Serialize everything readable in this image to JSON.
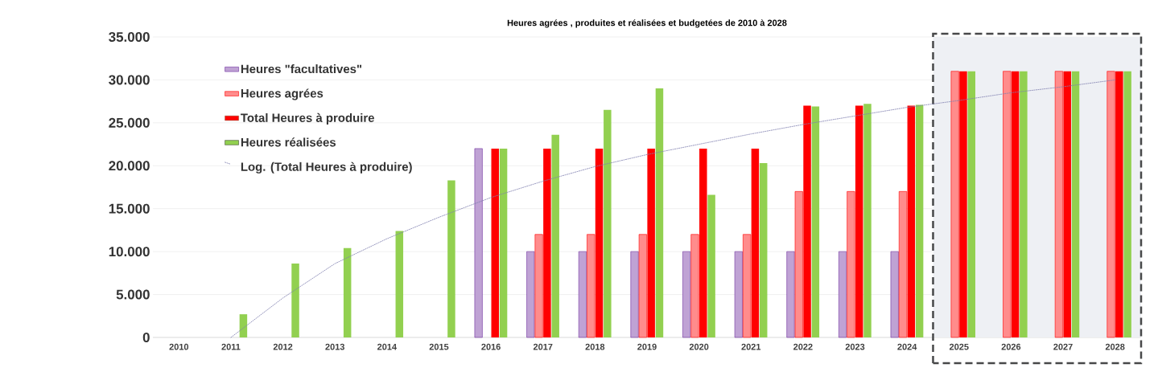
{
  "chart_data": {
    "type": "bar",
    "title": "Heures agrées , produites et réalisées et budgetées de 2010 à 2028",
    "categories": [
      "2010",
      "2011",
      "2012",
      "2013",
      "2014",
      "2015",
      "2016",
      "2017",
      "2018",
      "2019",
      "2020",
      "2021",
      "2022",
      "2023",
      "2024",
      "2025",
      "2026",
      "2027",
      "2028"
    ],
    "series": [
      {
        "name": "Heures \"facultatives\"",
        "color": "#7030a0",
        "values": [
          null,
          null,
          null,
          null,
          null,
          null,
          22000,
          10000,
          10000,
          10000,
          10000,
          10000,
          10000,
          10000,
          10000,
          null,
          null,
          null,
          null
        ]
      },
      {
        "name": "Heures agrées",
        "color": "#ff0000",
        "values": [
          null,
          null,
          null,
          null,
          null,
          null,
          null,
          12000,
          12000,
          12000,
          12000,
          12000,
          17000,
          17000,
          17000,
          31000,
          31000,
          31000,
          31000
        ]
      },
      {
        "name": "Total Heures à produire",
        "color": "#ff0000",
        "values": [
          null,
          null,
          null,
          null,
          null,
          null,
          22000,
          22000,
          22000,
          22000,
          22000,
          22000,
          27000,
          27000,
          27000,
          31000,
          31000,
          31000,
          31000
        ]
      },
      {
        "name": "Heures réalisées",
        "color": "#92d050",
        "values": [
          null,
          2700,
          8600,
          10400,
          12400,
          18300,
          22000,
          23600,
          26500,
          29000,
          16600,
          20300,
          26900,
          27200,
          27100,
          31000,
          31000,
          31000,
          31000
        ]
      },
      {
        "name": "Log. (Total Heures à produire)",
        "type": "line",
        "line_style": "dotted",
        "color": "#8080b0",
        "values": [
          null,
          0,
          4600,
          8600,
          11500,
          14000,
          16300,
          18200,
          19900,
          21300,
          22500,
          23700,
          24800,
          25800,
          26800,
          27600,
          28500,
          29200,
          30000
        ]
      }
    ],
    "ylim": [
      0,
      35000
    ],
    "yticks": [
      0,
      {
        "value": 5000,
        "label": "5.000"
      },
      {
        "value": 10000,
        "label": "10.000"
      },
      {
        "value": 15000,
        "label": "15.000"
      },
      {
        "value": 20000,
        "label": "20.000"
      },
      {
        "value": 25000,
        "label": "25.000"
      },
      {
        "value": 30000,
        "label": "30.000"
      },
      {
        "value": 35000,
        "label": "35.000"
      }
    ],
    "grid": "y",
    "legend": "top left",
    "bands": [
      {
        "axis": "x",
        "from": "2025",
        "to": "2028",
        "color": "#eef0f4"
      }
    ]
  }
}
